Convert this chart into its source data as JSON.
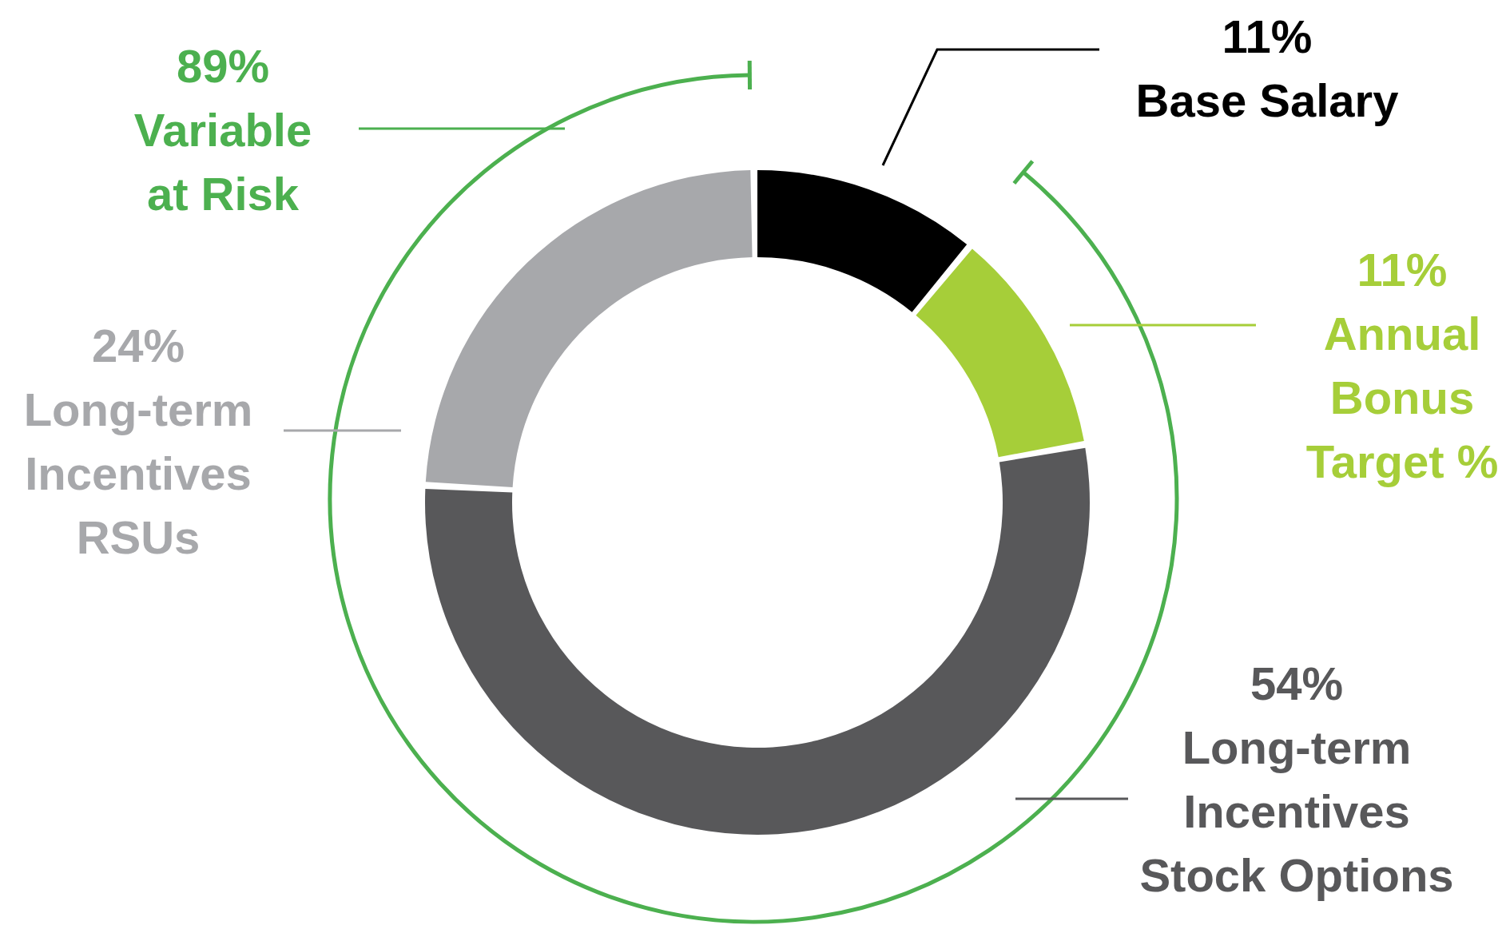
{
  "chart_data": {
    "type": "donut",
    "categories": [
      "Base Salary",
      "Annual Bonus Target %",
      "Long-term Incentives Stock Options",
      "Long-term Incentives RSUs"
    ],
    "values": [
      11,
      11,
      54,
      24
    ],
    "value_labels": [
      "11%",
      "11%",
      "54%",
      "24%"
    ],
    "colors": [
      "#000000",
      "#a6ce39",
      "#58585a",
      "#a7a8ab"
    ],
    "annotations": [
      "89% Variable at Risk"
    ],
    "legend": false
  }
}
